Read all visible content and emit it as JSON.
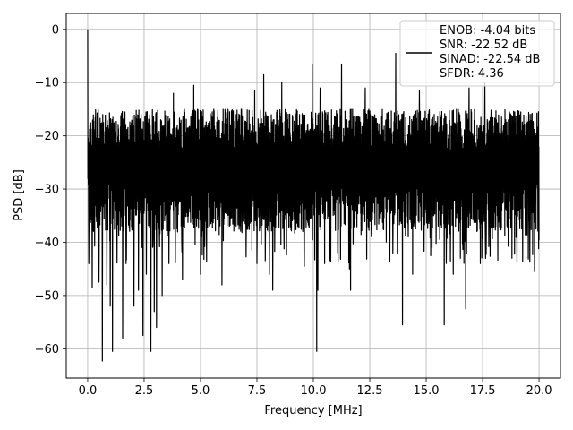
{
  "chart_data": {
    "type": "line",
    "xlabel": "Frequency [MHz]",
    "ylabel": "PSD [dB]",
    "xlim": [
      -0.95,
      20.95
    ],
    "ylim": [
      -65.5,
      3.0
    ],
    "xticks": [
      0.0,
      2.5,
      5.0,
      7.5,
      10.0,
      12.5,
      15.0,
      17.5,
      20.0
    ],
    "xtick_labels": [
      "0.0",
      "2.5",
      "5.0",
      "7.5",
      "10.0",
      "12.5",
      "15.0",
      "17.5",
      "20.0"
    ],
    "yticks": [
      0,
      -10,
      -20,
      -30,
      -40,
      -50,
      -60
    ],
    "ytick_labels": [
      "0",
      "−10",
      "−20",
      "−30",
      "−40",
      "−50",
      "−60"
    ],
    "grid": true,
    "legend_placement": "top-right",
    "line_color": "#000000",
    "series": [
      {
        "legend_lines": [
          "ENOB: -4.04 bits",
          "SNR: -22.52 dB",
          "SINAD: -22.54 dB",
          "SFDR: 4.36"
        ],
        "noise_band": {
          "upper": -15,
          "lower": -38,
          "median": -25
        },
        "peaks": [
          {
            "x": 0.0,
            "y": 0.0
          },
          {
            "x": 0.05,
            "y": -44.0
          },
          {
            "x": 0.2,
            "y": -48.5
          },
          {
            "x": 0.5,
            "y": -47.5
          },
          {
            "x": 0.65,
            "y": -62.3
          },
          {
            "x": 0.85,
            "y": -48.0
          },
          {
            "x": 1.0,
            "y": -52.0
          },
          {
            "x": 1.1,
            "y": -60.5
          },
          {
            "x": 1.55,
            "y": -58.0
          },
          {
            "x": 1.7,
            "y": -44.0
          },
          {
            "x": 2.05,
            "y": -52.0
          },
          {
            "x": 2.25,
            "y": -49.0
          },
          {
            "x": 2.45,
            "y": -57.5
          },
          {
            "x": 2.6,
            "y": -46.0
          },
          {
            "x": 2.8,
            "y": -60.5
          },
          {
            "x": 2.95,
            "y": -53.0
          },
          {
            "x": 3.05,
            "y": -56.0
          },
          {
            "x": 3.3,
            "y": -50.0
          },
          {
            "x": 3.6,
            "y": -44.0
          },
          {
            "x": 4.2,
            "y": -47.0
          },
          {
            "x": 5.0,
            "y": -46.0
          },
          {
            "x": 5.95,
            "y": -48.0
          },
          {
            "x": 7.5,
            "y": -44.0
          },
          {
            "x": 8.05,
            "y": -46.0
          },
          {
            "x": 8.2,
            "y": -49.0
          },
          {
            "x": 9.6,
            "y": -44.5
          },
          {
            "x": 10.15,
            "y": -60.5
          },
          {
            "x": 10.2,
            "y": -49.0
          },
          {
            "x": 10.5,
            "y": -44.0
          },
          {
            "x": 11.6,
            "y": -45.0
          },
          {
            "x": 11.65,
            "y": -49.0
          },
          {
            "x": 13.65,
            "y": -4.5
          },
          {
            "x": 13.95,
            "y": -55.5
          },
          {
            "x": 14.4,
            "y": -46.0
          },
          {
            "x": 15.2,
            "y": -42.5
          },
          {
            "x": 15.8,
            "y": -55.5
          },
          {
            "x": 16.2,
            "y": -46.0
          },
          {
            "x": 16.75,
            "y": -52.5
          },
          {
            "x": 17.4,
            "y": -44.0
          },
          {
            "x": 18.8,
            "y": -43.0
          },
          {
            "x": 19.8,
            "y": -45.5
          }
        ],
        "upper_peaks": [
          {
            "x": 3.8,
            "y": -12.0
          },
          {
            "x": 4.7,
            "y": -10.5
          },
          {
            "x": 7.4,
            "y": -11.5
          },
          {
            "x": 7.8,
            "y": -8.5
          },
          {
            "x": 8.6,
            "y": -10.0
          },
          {
            "x": 9.95,
            "y": -6.5
          },
          {
            "x": 10.3,
            "y": -11.0
          },
          {
            "x": 11.25,
            "y": -6.5
          },
          {
            "x": 12.3,
            "y": -11.0
          },
          {
            "x": 14.7,
            "y": -11.5
          },
          {
            "x": 16.9,
            "y": -11.0
          },
          {
            "x": 17.6,
            "y": -10.0
          }
        ]
      }
    ]
  }
}
